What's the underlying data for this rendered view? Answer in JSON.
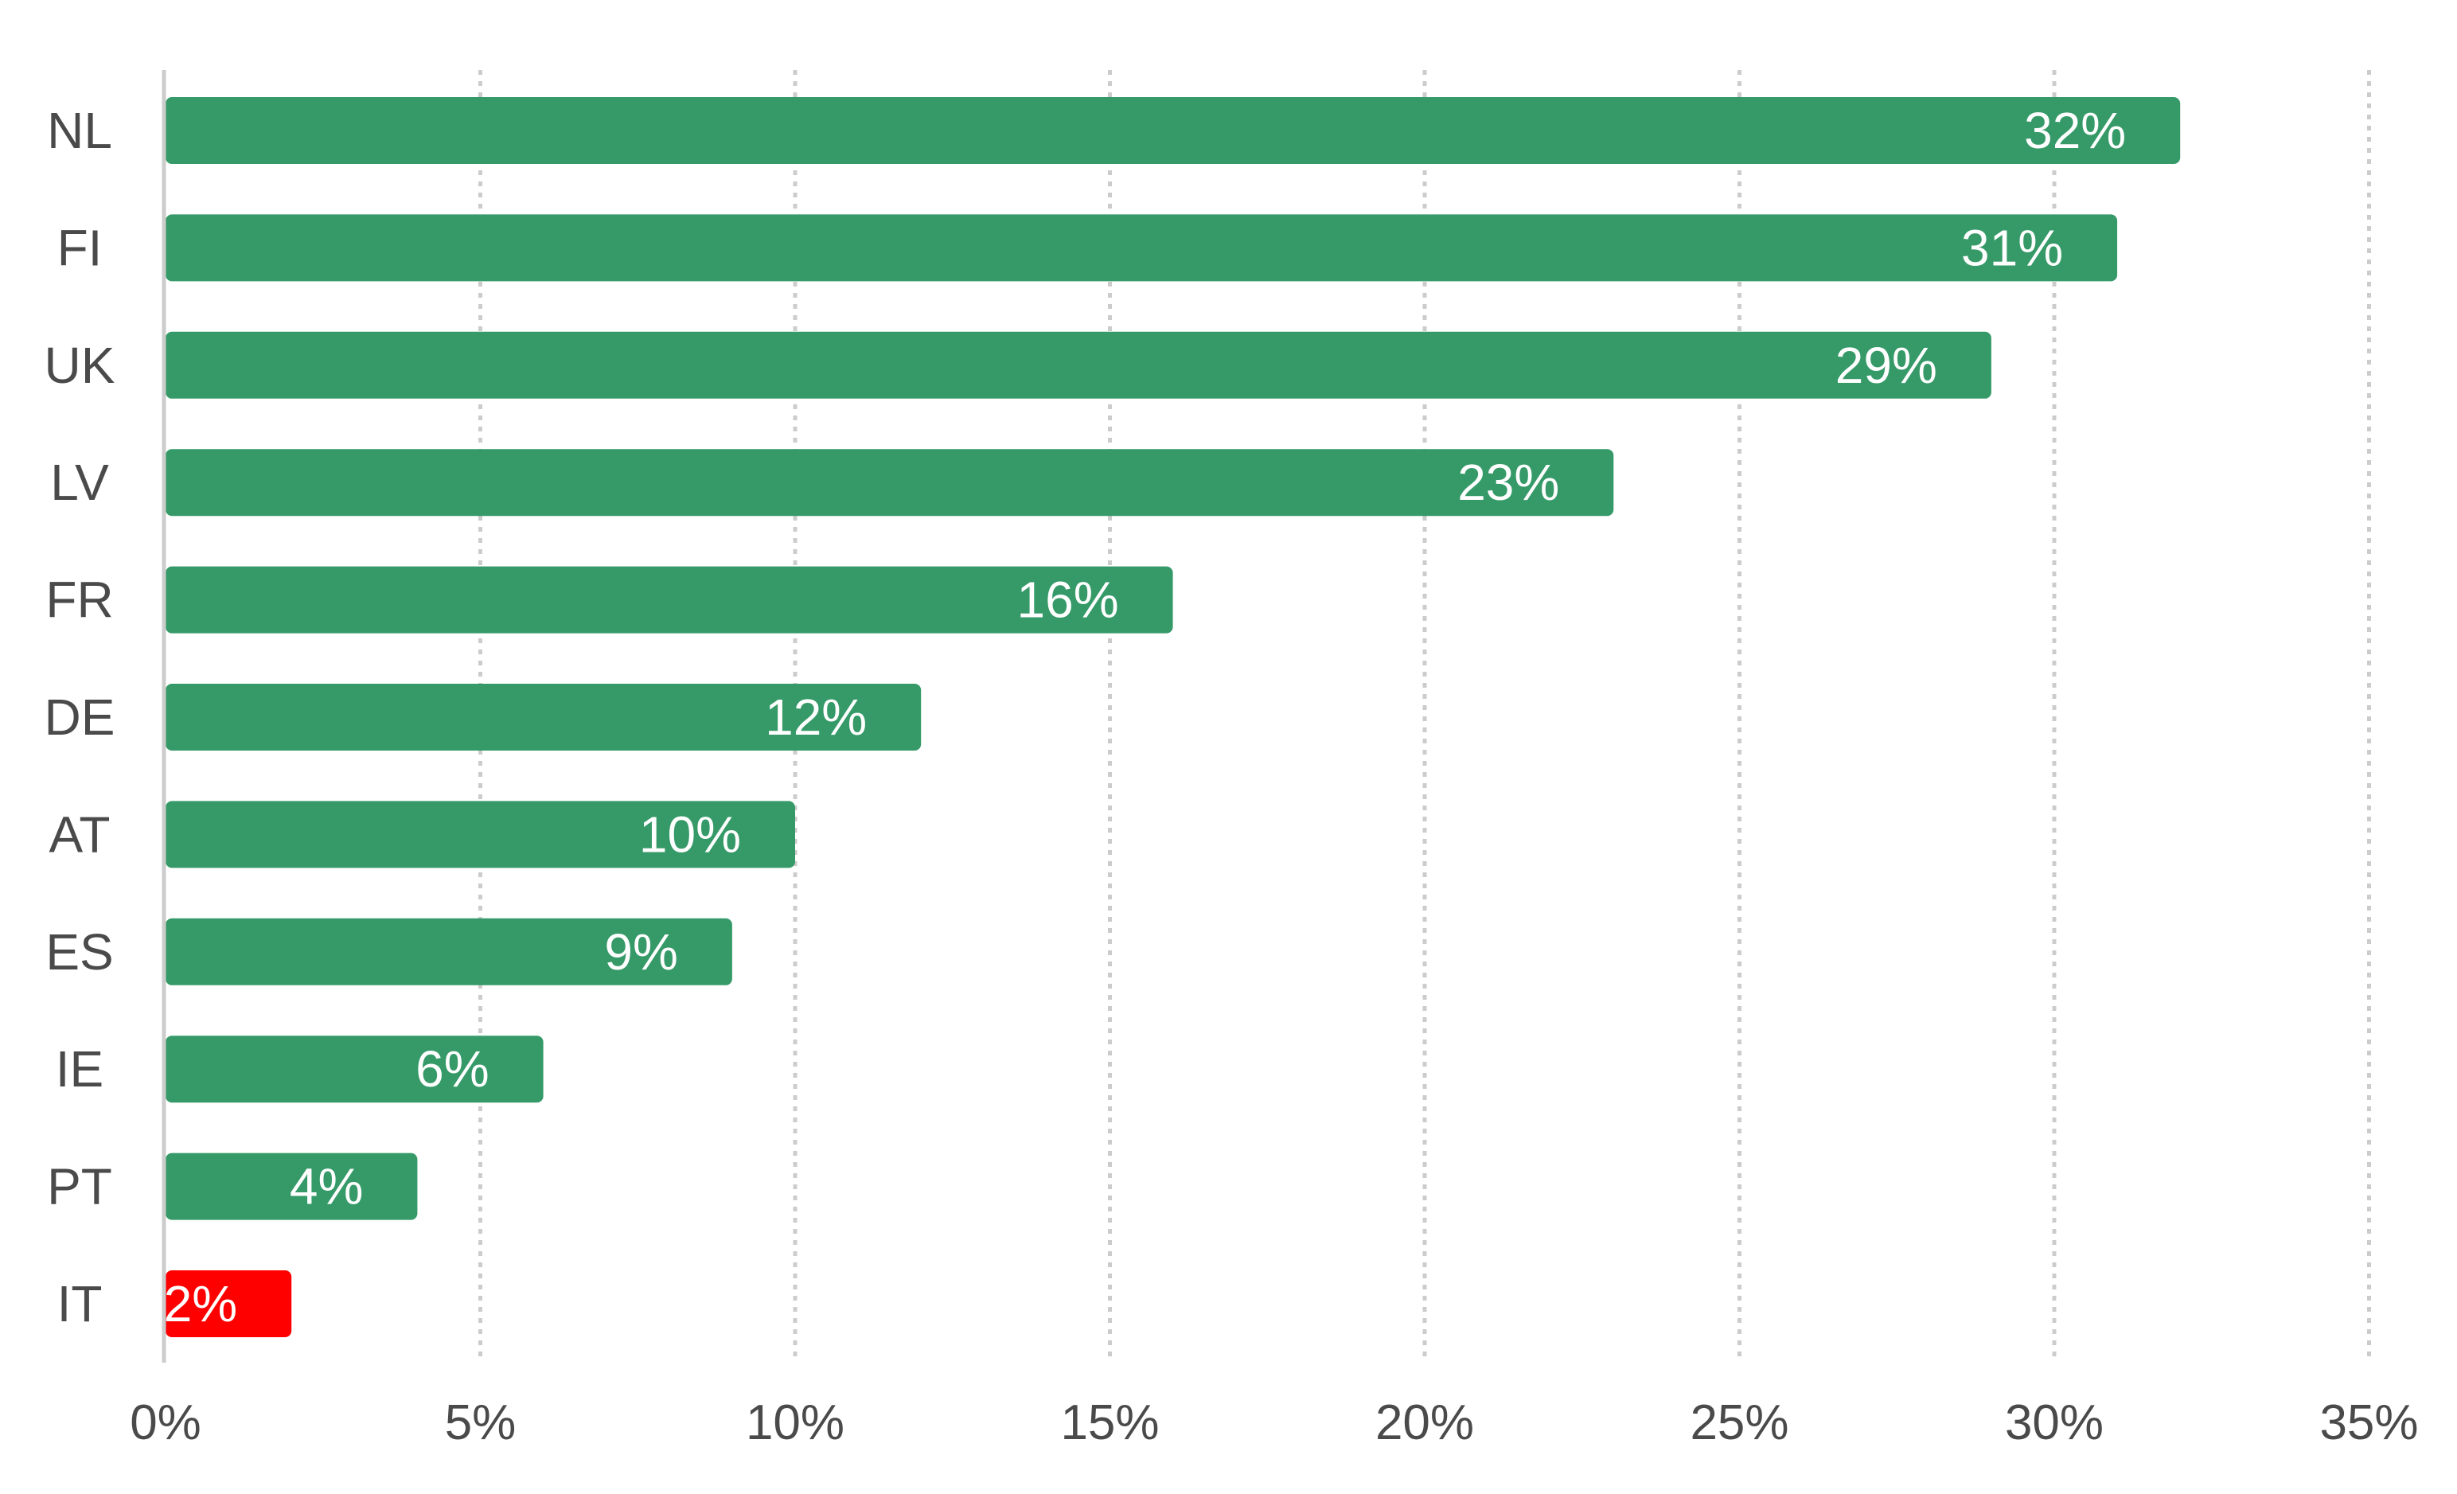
{
  "chart_data": {
    "type": "bar",
    "orientation": "horizontal",
    "title": "",
    "xlabel": "",
    "ylabel": "",
    "categories": [
      "NL",
      "FI",
      "UK",
      "LV",
      "FR",
      "DE",
      "AT",
      "ES",
      "IE",
      "PT",
      "IT"
    ],
    "values": [
      32,
      31,
      29,
      23,
      16,
      12,
      10,
      9,
      6,
      4,
      2
    ],
    "value_labels": [
      "32%",
      "31%",
      "29%",
      "23%",
      "16%",
      "12%",
      "10%",
      "9%",
      "6%",
      "4%",
      "2%"
    ],
    "xlim": [
      0,
      35
    ],
    "x_ticks": [
      "0%",
      "5%",
      "10%",
      "15%",
      "20%",
      "25%",
      "30%",
      "35%"
    ],
    "x_tick_values": [
      0,
      5,
      10,
      15,
      20,
      25,
      30,
      35
    ],
    "grid": "vertical dotted",
    "legend": "none",
    "colors": {
      "default": "#359a68",
      "highlight": "#ff0000",
      "highlight_category": "IT",
      "grid": "#cccccc",
      "axis": "#cccccc",
      "text": "#4a4a4a",
      "data_label": "#ffffff"
    }
  }
}
